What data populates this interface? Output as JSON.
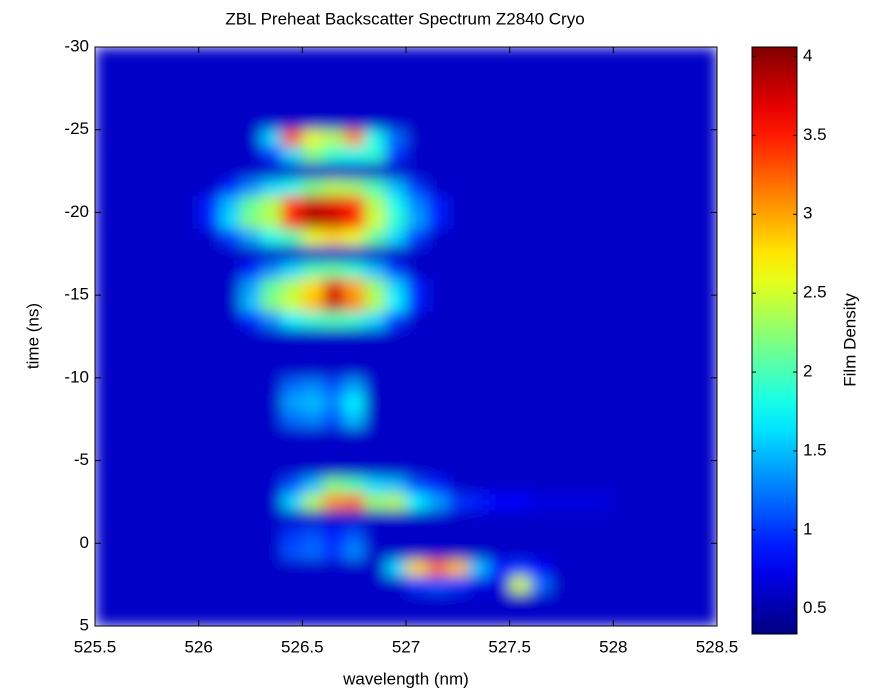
{
  "chart_data": {
    "type": "heatmap",
    "title": "ZBL Preheat Backscatter Spectrum Z2840 Cryo",
    "x_label": "wavelength (nm)",
    "y_label": "time (ns)",
    "colorbar_label": "Film Density",
    "colormap": "jet",
    "xlim": [
      525.5,
      528.5
    ],
    "xticks": [
      525.5,
      526,
      526.5,
      527,
      527.5,
      528,
      528.5
    ],
    "ylim": [
      -30,
      5
    ],
    "yticks": [
      -30,
      -25,
      -20,
      -15,
      -10,
      -5,
      0,
      5
    ],
    "clim": [
      0.34,
      4.06
    ],
    "cticks": [
      0.5,
      1,
      1.5,
      2,
      2.5,
      3,
      3.5,
      4
    ],
    "x": [
      525.55,
      525.65,
      525.75,
      525.85,
      525.95,
      526.05,
      526.15,
      526.25,
      526.35,
      526.45,
      526.55,
      526.65,
      526.75,
      526.85,
      526.95,
      527.05,
      527.15,
      527.25,
      527.35,
      527.45,
      527.55,
      527.65,
      527.75,
      527.85,
      527.95,
      528.05,
      528.15,
      528.25,
      528.35,
      528.45
    ],
    "y": [
      -29.5,
      -28.5,
      -27.5,
      -26.5,
      -25.5,
      -24.5,
      -23.5,
      -22.5,
      -21.5,
      -20.5,
      -19.5,
      -18.5,
      -17.5,
      -16.5,
      -15.5,
      -14.5,
      -13.5,
      -12.5,
      -11.5,
      -10.5,
      -9.5,
      -8.5,
      -7.5,
      -6.5,
      -5.5,
      -4.5,
      -3.5,
      -2.5,
      -1.5,
      -0.5,
      0.5,
      1.5,
      2.5,
      3.5,
      4.5
    ],
    "z": [
      [
        0.6,
        0.6,
        0.6,
        0.6,
        0.6,
        0.6,
        0.6,
        0.6,
        0.6,
        0.6,
        0.6,
        0.6,
        0.6,
        0.6,
        0.6,
        0.6,
        0.6,
        0.6,
        0.6,
        0.6,
        0.6,
        0.6,
        0.6,
        0.6,
        0.6,
        0.6,
        0.6,
        0.6,
        0.6,
        0.6
      ],
      [
        0.6,
        0.6,
        0.6,
        0.6,
        0.6,
        0.6,
        0.6,
        0.6,
        0.6,
        0.6,
        0.6,
        0.6,
        0.6,
        0.6,
        0.6,
        0.6,
        0.6,
        0.6,
        0.6,
        0.6,
        0.6,
        0.6,
        0.6,
        0.6,
        0.6,
        0.6,
        0.6,
        0.6,
        0.6,
        0.6
      ],
      [
        0.6,
        0.6,
        0.6,
        0.6,
        0.6,
        0.6,
        0.6,
        0.6,
        0.6,
        0.6,
        0.6,
        0.6,
        0.6,
        0.6,
        0.6,
        0.6,
        0.6,
        0.6,
        0.6,
        0.6,
        0.6,
        0.6,
        0.6,
        0.6,
        0.6,
        0.6,
        0.6,
        0.6,
        0.6,
        0.6
      ],
      [
        0.6,
        0.6,
        0.6,
        0.6,
        0.6,
        0.6,
        0.6,
        0.6,
        0.6,
        0.6,
        0.6,
        0.6,
        0.6,
        0.6,
        0.6,
        0.6,
        0.6,
        0.6,
        0.6,
        0.6,
        0.6,
        0.6,
        0.6,
        0.6,
        0.6,
        0.6,
        0.6,
        0.6,
        0.6,
        0.6
      ],
      [
        0.6,
        0.6,
        0.6,
        0.6,
        0.6,
        0.6,
        0.6,
        0.6,
        0.6,
        0.6,
        0.6,
        0.6,
        0.6,
        0.6,
        0.6,
        0.6,
        0.6,
        0.6,
        0.6,
        0.6,
        0.6,
        0.6,
        0.6,
        0.6,
        0.6,
        0.6,
        0.6,
        0.6,
        0.6,
        0.6
      ],
      [
        0.6,
        0.6,
        0.6,
        0.6,
        0.6,
        0.6,
        0.6,
        0.6,
        1.6,
        3.3,
        2.6,
        2.4,
        3.1,
        1.8,
        1.2,
        0.6,
        0.6,
        0.6,
        0.6,
        0.6,
        0.6,
        0.6,
        0.6,
        0.6,
        0.6,
        0.6,
        0.6,
        0.6,
        0.6,
        0.6
      ],
      [
        0.6,
        0.6,
        0.6,
        0.6,
        0.6,
        0.6,
        0.6,
        0.6,
        1.0,
        1.6,
        2.2,
        1.9,
        1.8,
        1.9,
        1.0,
        0.6,
        0.6,
        0.6,
        0.6,
        0.6,
        0.6,
        0.6,
        0.6,
        0.6,
        0.6,
        0.6,
        0.6,
        0.6,
        0.6,
        0.6
      ],
      [
        0.6,
        0.6,
        0.6,
        0.6,
        0.6,
        0.6,
        0.6,
        0.6,
        0.6,
        0.6,
        0.6,
        0.6,
        0.6,
        0.6,
        0.6,
        0.6,
        0.6,
        0.6,
        0.6,
        0.6,
        0.6,
        0.6,
        0.6,
        0.6,
        0.6,
        0.6,
        0.6,
        0.6,
        0.6,
        0.6
      ],
      [
        0.6,
        0.6,
        0.6,
        0.6,
        0.6,
        0.6,
        0.9,
        1.3,
        1.6,
        1.8,
        2.2,
        2.4,
        2.3,
        2.0,
        1.5,
        1.0,
        0.6,
        0.6,
        0.6,
        0.6,
        0.6,
        0.6,
        0.6,
        0.6,
        0.6,
        0.6,
        0.6,
        0.6,
        0.6,
        0.6
      ],
      [
        0.6,
        0.6,
        0.6,
        0.6,
        0.6,
        0.9,
        1.5,
        2.1,
        2.4,
        3.4,
        3.8,
        3.7,
        3.4,
        2.4,
        1.8,
        1.3,
        0.9,
        0.6,
        0.6,
        0.6,
        0.6,
        0.6,
        0.6,
        0.6,
        0.6,
        0.6,
        0.6,
        0.6,
        0.6,
        0.6
      ],
      [
        0.6,
        0.6,
        0.6,
        0.6,
        0.6,
        0.9,
        1.6,
        2.2,
        2.4,
        3.6,
        3.9,
        3.8,
        3.6,
        2.5,
        1.9,
        1.4,
        0.9,
        0.6,
        0.6,
        0.6,
        0.6,
        0.6,
        0.6,
        0.6,
        0.6,
        0.6,
        0.6,
        0.6,
        0.6,
        0.6
      ],
      [
        0.6,
        0.6,
        0.6,
        0.6,
        0.6,
        0.6,
        1.0,
        1.4,
        1.8,
        2.0,
        2.6,
        2.8,
        2.6,
        2.1,
        1.6,
        1.0,
        0.6,
        0.6,
        0.6,
        0.6,
        0.6,
        0.6,
        0.6,
        0.6,
        0.6,
        0.6,
        0.6,
        0.6,
        0.6,
        0.6
      ],
      [
        0.6,
        0.6,
        0.6,
        0.6,
        0.6,
        0.6,
        0.6,
        0.6,
        0.6,
        0.6,
        0.6,
        0.6,
        0.6,
        0.6,
        0.6,
        0.6,
        0.6,
        0.6,
        0.6,
        0.6,
        0.6,
        0.6,
        0.6,
        0.6,
        0.6,
        0.6,
        0.6,
        0.6,
        0.6,
        0.6
      ],
      [
        0.6,
        0.6,
        0.6,
        0.6,
        0.6,
        0.6,
        0.6,
        0.9,
        1.3,
        1.6,
        2.0,
        2.1,
        1.9,
        1.5,
        1.0,
        0.6,
        0.6,
        0.6,
        0.6,
        0.6,
        0.6,
        0.6,
        0.6,
        0.6,
        0.6,
        0.6,
        0.6,
        0.6,
        0.6,
        0.6
      ],
      [
        0.6,
        0.6,
        0.6,
        0.6,
        0.6,
        0.6,
        0.6,
        1.4,
        2.1,
        2.4,
        2.8,
        3.7,
        3.0,
        2.3,
        1.6,
        0.9,
        0.6,
        0.6,
        0.6,
        0.6,
        0.6,
        0.6,
        0.6,
        0.6,
        0.6,
        0.6,
        0.6,
        0.6,
        0.6,
        0.6
      ],
      [
        0.6,
        0.6,
        0.6,
        0.6,
        0.6,
        0.6,
        0.6,
        1.5,
        2.2,
        2.5,
        2.9,
        3.8,
        3.1,
        2.4,
        1.7,
        0.9,
        0.6,
        0.6,
        0.6,
        0.6,
        0.6,
        0.6,
        0.6,
        0.6,
        0.6,
        0.6,
        0.6,
        0.6,
        0.6,
        0.6
      ],
      [
        0.6,
        0.6,
        0.6,
        0.6,
        0.6,
        0.6,
        0.6,
        0.9,
        1.3,
        1.7,
        1.9,
        2.0,
        1.9,
        1.6,
        1.0,
        0.6,
        0.6,
        0.6,
        0.6,
        0.6,
        0.6,
        0.6,
        0.6,
        0.6,
        0.6,
        0.6,
        0.6,
        0.6,
        0.6,
        0.6
      ],
      [
        0.6,
        0.6,
        0.6,
        0.6,
        0.6,
        0.6,
        0.6,
        0.6,
        0.6,
        0.6,
        0.6,
        0.6,
        0.6,
        0.6,
        0.6,
        0.6,
        0.6,
        0.6,
        0.6,
        0.6,
        0.6,
        0.6,
        0.6,
        0.6,
        0.6,
        0.6,
        0.6,
        0.6,
        0.6,
        0.6
      ],
      [
        0.6,
        0.6,
        0.6,
        0.6,
        0.6,
        0.6,
        0.6,
        0.6,
        0.6,
        0.6,
        0.6,
        0.6,
        0.6,
        0.6,
        0.6,
        0.6,
        0.6,
        0.6,
        0.6,
        0.6,
        0.6,
        0.6,
        0.6,
        0.6,
        0.6,
        0.6,
        0.6,
        0.6,
        0.6,
        0.6
      ],
      [
        0.6,
        0.6,
        0.6,
        0.6,
        0.6,
        0.6,
        0.6,
        0.6,
        0.6,
        0.6,
        0.6,
        0.6,
        0.6,
        0.6,
        0.6,
        0.6,
        0.6,
        0.6,
        0.6,
        0.6,
        0.6,
        0.6,
        0.6,
        0.6,
        0.6,
        0.6,
        0.6,
        0.6,
        0.6,
        0.6
      ],
      [
        0.6,
        0.6,
        0.6,
        0.6,
        0.6,
        0.6,
        0.6,
        0.6,
        0.6,
        1.2,
        1.3,
        1.1,
        1.4,
        0.6,
        0.6,
        0.6,
        0.6,
        0.6,
        0.6,
        0.6,
        0.6,
        0.6,
        0.6,
        0.6,
        0.6,
        0.6,
        0.6,
        0.6,
        0.6,
        0.6
      ],
      [
        0.6,
        0.6,
        0.6,
        0.6,
        0.6,
        0.6,
        0.6,
        0.6,
        0.6,
        1.4,
        1.5,
        1.3,
        1.7,
        0.6,
        0.6,
        0.6,
        0.6,
        0.6,
        0.6,
        0.6,
        0.6,
        0.6,
        0.6,
        0.6,
        0.6,
        0.6,
        0.6,
        0.6,
        0.6,
        0.6
      ],
      [
        0.6,
        0.6,
        0.6,
        0.6,
        0.6,
        0.6,
        0.6,
        0.6,
        0.6,
        1.2,
        1.3,
        1.1,
        1.5,
        0.6,
        0.6,
        0.6,
        0.6,
        0.6,
        0.6,
        0.6,
        0.6,
        0.6,
        0.6,
        0.6,
        0.6,
        0.6,
        0.6,
        0.6,
        0.6,
        0.6
      ],
      [
        0.6,
        0.6,
        0.6,
        0.6,
        0.6,
        0.6,
        0.6,
        0.6,
        0.6,
        0.6,
        0.6,
        0.6,
        0.6,
        0.6,
        0.6,
        0.6,
        0.6,
        0.6,
        0.6,
        0.6,
        0.6,
        0.6,
        0.6,
        0.6,
        0.6,
        0.6,
        0.6,
        0.6,
        0.6,
        0.6
      ],
      [
        0.6,
        0.6,
        0.6,
        0.6,
        0.6,
        0.6,
        0.6,
        0.6,
        0.6,
        0.6,
        0.6,
        0.6,
        0.6,
        0.6,
        0.6,
        0.6,
        0.6,
        0.6,
        0.6,
        0.6,
        0.6,
        0.6,
        0.6,
        0.6,
        0.6,
        0.6,
        0.6,
        0.6,
        0.6,
        0.6
      ],
      [
        0.6,
        0.6,
        0.6,
        0.6,
        0.6,
        0.6,
        0.6,
        0.6,
        0.6,
        0.6,
        0.6,
        0.6,
        0.6,
        0.6,
        0.6,
        0.6,
        0.6,
        0.6,
        0.6,
        0.6,
        0.6,
        0.6,
        0.6,
        0.6,
        0.6,
        0.6,
        0.6,
        0.6,
        0.6,
        0.6
      ],
      [
        0.6,
        0.6,
        0.6,
        0.6,
        0.6,
        0.6,
        0.6,
        0.6,
        0.6,
        1.1,
        1.5,
        2.2,
        2.0,
        1.6,
        1.5,
        1.1,
        0.9,
        0.6,
        0.6,
        0.6,
        0.6,
        0.6,
        0.6,
        0.6,
        0.6,
        0.6,
        0.6,
        0.6,
        0.6,
        0.6
      ],
      [
        0.6,
        0.6,
        0.6,
        0.6,
        0.6,
        0.6,
        0.6,
        0.6,
        0.6,
        1.6,
        2.4,
        3.1,
        3.2,
        2.3,
        2.4,
        1.7,
        1.4,
        1.0,
        0.9,
        0.8,
        0.8,
        0.7,
        0.7,
        0.7,
        0.7,
        0.6,
        0.6,
        0.6,
        0.6,
        0.6
      ],
      [
        0.6,
        0.6,
        0.6,
        0.6,
        0.6,
        0.6,
        0.6,
        0.6,
        0.6,
        0.6,
        0.6,
        0.6,
        0.6,
        0.6,
        0.6,
        0.6,
        0.6,
        0.6,
        0.6,
        0.6,
        0.6,
        0.6,
        0.6,
        0.6,
        0.6,
        0.6,
        0.6,
        0.6,
        0.6,
        0.6
      ],
      [
        0.6,
        0.6,
        0.6,
        0.6,
        0.6,
        0.6,
        0.6,
        0.6,
        0.6,
        1.0,
        1.1,
        0.9,
        1.1,
        0.6,
        0.6,
        0.6,
        0.6,
        0.6,
        0.6,
        0.6,
        0.6,
        0.6,
        0.6,
        0.6,
        0.6,
        0.6,
        0.6,
        0.6,
        0.6,
        0.6
      ],
      [
        0.6,
        0.6,
        0.6,
        0.6,
        0.6,
        0.6,
        0.6,
        0.6,
        0.6,
        1.1,
        1.2,
        1.0,
        1.3,
        0.6,
        0.6,
        0.6,
        0.6,
        0.6,
        0.6,
        0.6,
        0.6,
        0.6,
        0.6,
        0.6,
        0.6,
        0.6,
        0.6,
        0.6,
        0.6,
        0.6
      ],
      [
        0.6,
        0.6,
        0.6,
        0.6,
        0.6,
        0.6,
        0.6,
        0.6,
        0.6,
        0.6,
        0.6,
        0.6,
        0.6,
        0.6,
        1.6,
        2.8,
        3.2,
        2.9,
        1.5,
        0.9,
        1.0,
        0.8,
        0.6,
        0.6,
        0.6,
        0.6,
        0.6,
        0.6,
        0.6,
        0.6
      ],
      [
        0.6,
        0.6,
        0.6,
        0.6,
        0.6,
        0.6,
        0.6,
        0.6,
        0.6,
        0.6,
        0.6,
        0.6,
        0.6,
        0.6,
        0.6,
        1.0,
        1.1,
        1.0,
        0.7,
        0.7,
        2.5,
        1.2,
        0.6,
        0.6,
        0.6,
        0.6,
        0.6,
        0.6,
        0.6,
        0.6
      ],
      [
        0.6,
        0.6,
        0.6,
        0.6,
        0.6,
        0.6,
        0.6,
        0.6,
        0.6,
        0.6,
        0.6,
        0.6,
        0.6,
        0.6,
        0.6,
        0.6,
        0.6,
        0.6,
        0.6,
        0.6,
        0.6,
        0.6,
        0.6,
        0.6,
        0.6,
        0.6,
        0.6,
        0.6,
        0.6,
        0.6
      ],
      [
        0.6,
        0.6,
        0.6,
        0.6,
        0.6,
        0.6,
        0.6,
        0.6,
        0.6,
        0.6,
        0.6,
        0.6,
        0.6,
        0.6,
        0.6,
        0.6,
        0.6,
        0.6,
        0.6,
        0.6,
        0.6,
        0.6,
        0.6,
        0.6,
        0.6,
        0.6,
        0.6,
        0.6,
        0.6,
        0.6
      ]
    ]
  }
}
